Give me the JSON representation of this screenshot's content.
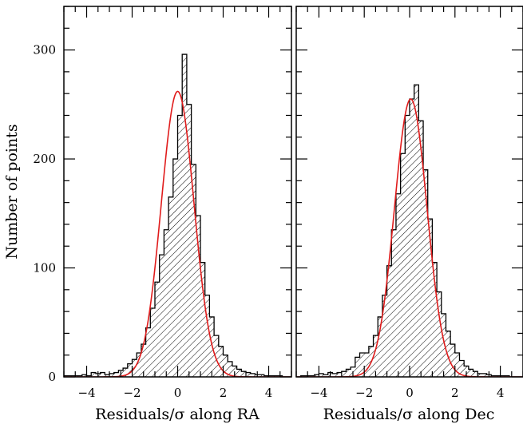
{
  "chart_data": [
    {
      "type": "histogram",
      "panel": "left",
      "xlabel": "Residuals/σ along RA",
      "ylabel": "Number of points",
      "xlim": [
        -5,
        5
      ],
      "ylim": [
        0,
        340
      ],
      "x_ticks": [
        -4,
        -2,
        0,
        2,
        4
      ],
      "y_ticks": [
        0,
        100,
        200,
        300
      ],
      "x_tick_labels": [
        "−4",
        "−2",
        "0",
        "2",
        "4"
      ],
      "y_tick_labels": [
        "0",
        "100",
        "200",
        "300"
      ],
      "bin_width": 0.2,
      "bin_edges": [
        -5.0,
        -4.8,
        -4.6,
        -4.4,
        -4.2,
        -4.0,
        -3.8,
        -3.6,
        -3.4,
        -3.2,
        -3.0,
        -2.8,
        -2.6,
        -2.4,
        -2.2,
        -2.0,
        -1.8,
        -1.6,
        -1.4,
        -1.2,
        -1.0,
        -0.8,
        -0.6,
        -0.4,
        -0.2,
        0.0,
        0.2,
        0.4,
        0.6,
        0.8,
        1.0,
        1.2,
        1.4,
        1.6,
        1.8,
        2.0,
        2.2,
        2.4,
        2.6,
        2.8,
        3.0,
        3.2,
        3.4,
        3.6,
        3.8,
        4.0,
        4.2,
        4.4,
        4.6,
        4.8,
        5.0
      ],
      "counts": [
        1,
        1,
        1,
        1,
        2,
        1,
        4,
        3,
        4,
        2,
        3,
        4,
        6,
        8,
        12,
        16,
        22,
        30,
        45,
        63,
        87,
        112,
        135,
        165,
        200,
        240,
        296,
        250,
        195,
        148,
        105,
        75,
        55,
        38,
        28,
        20,
        14,
        10,
        7,
        5,
        4,
        3,
        2,
        2,
        1,
        1,
        1,
        1,
        0,
        0
      ],
      "hatch": "diagonal",
      "fit_curve": {
        "kind": "gaussian",
        "color": "#e01b1b",
        "mean": 0.0,
        "sigma": 0.72,
        "amplitude": 262
      },
      "grid": false
    },
    {
      "type": "histogram",
      "panel": "right",
      "xlabel": "Residuals/σ along Dec",
      "ylabel": "",
      "xlim": [
        -5,
        5
      ],
      "ylim": [
        0,
        340
      ],
      "x_ticks": [
        -4,
        -2,
        0,
        2,
        4
      ],
      "y_ticks": [
        0,
        100,
        200,
        300
      ],
      "x_tick_labels": [
        "−4",
        "−2",
        "0",
        "2",
        "4"
      ],
      "bin_width": 0.2,
      "bin_edges": [
        -5.0,
        -4.8,
        -4.6,
        -4.4,
        -4.2,
        -4.0,
        -3.8,
        -3.6,
        -3.4,
        -3.2,
        -3.0,
        -2.8,
        -2.6,
        -2.4,
        -2.2,
        -2.0,
        -1.8,
        -1.6,
        -1.4,
        -1.2,
        -1.0,
        -0.8,
        -0.6,
        -0.4,
        -0.2,
        0.0,
        0.2,
        0.4,
        0.6,
        0.8,
        1.0,
        1.2,
        1.4,
        1.6,
        1.8,
        2.0,
        2.2,
        2.4,
        2.6,
        2.8,
        3.0,
        3.2,
        3.4,
        3.6,
        3.8,
        4.0,
        4.2,
        4.4,
        4.6,
        4.8,
        5.0
      ],
      "counts": [
        0,
        1,
        1,
        1,
        2,
        3,
        2,
        4,
        3,
        4,
        5,
        7,
        9,
        18,
        22,
        22,
        28,
        38,
        55,
        75,
        102,
        135,
        168,
        205,
        240,
        255,
        268,
        235,
        190,
        145,
        105,
        78,
        58,
        42,
        30,
        22,
        15,
        10,
        7,
        5,
        3,
        3,
        2,
        1,
        1,
        1,
        1,
        0,
        0,
        0
      ],
      "hatch": "diagonal",
      "fit_curve": {
        "kind": "gaussian",
        "color": "#e01b1b",
        "mean": 0.05,
        "sigma": 0.72,
        "amplitude": 255
      },
      "grid": false
    }
  ]
}
